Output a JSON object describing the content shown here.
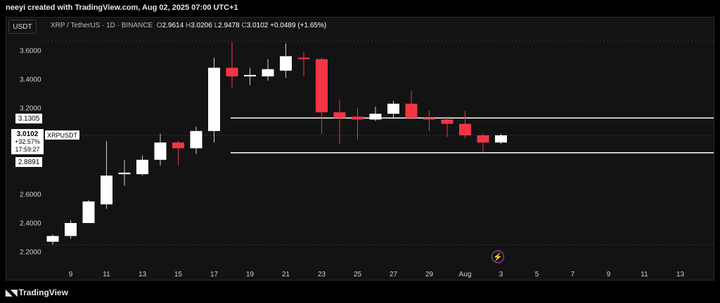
{
  "header": {
    "creator": "neeyi created with TradingView.com, Aug 02, 2025 07:00 UTC+1"
  },
  "toolbar": {
    "currency_button": "USDT"
  },
  "legend": {
    "pair": "XRP / TetherUS · 1D · BINANCE",
    "open_label": "O",
    "open": "2.9614",
    "high_label": "H",
    "high": "3.0206",
    "low_label": "L",
    "low": "2.9478",
    "close_label": "C",
    "close": "3.0102",
    "change": "+0.0489 (+1.65%)"
  },
  "price_scale": {
    "level_upper": "3.1305",
    "level_lower": "2.8891",
    "current_price": "3.0102",
    "current_change": "+32.57%",
    "countdown": "17:59:27",
    "symbol_tag": "XRPUSDT"
  },
  "chart_data": {
    "type": "candlestick",
    "y_ticks": [
      "3.6000",
      "3.4000",
      "3.2000",
      "2.6000",
      "2.4000",
      "2.2000"
    ],
    "x_ticks": [
      "9",
      "11",
      "13",
      "15",
      "17",
      "19",
      "21",
      "23",
      "25",
      "27",
      "29",
      "Aug",
      "3",
      "5",
      "7",
      "9",
      "11",
      "13"
    ],
    "ylim": [
      2.16,
      3.7
    ],
    "horizontal_levels": [
      3.1305,
      2.8891
    ],
    "colors": {
      "up": "#ffffff",
      "down": "#f23645",
      "background": "#131313",
      "grid": "#3a3a3a"
    },
    "candles": [
      {
        "date": "Jul 8",
        "o": 2.27,
        "h": 2.32,
        "l": 2.25,
        "c": 2.31
      },
      {
        "date": "Jul 9",
        "o": 2.31,
        "h": 2.42,
        "l": 2.29,
        "c": 2.4
      },
      {
        "date": "Jul 10",
        "o": 2.4,
        "h": 2.56,
        "l": 2.4,
        "c": 2.55
      },
      {
        "date": "Jul 11",
        "o": 2.53,
        "h": 2.97,
        "l": 2.5,
        "c": 2.73
      },
      {
        "date": "Jul 12",
        "o": 2.74,
        "h": 2.84,
        "l": 2.66,
        "c": 2.75
      },
      {
        "date": "Jul 13",
        "o": 2.74,
        "h": 2.87,
        "l": 2.73,
        "c": 2.84
      },
      {
        "date": "Jul 14",
        "o": 2.84,
        "h": 3.02,
        "l": 2.8,
        "c": 2.96
      },
      {
        "date": "Jul 15",
        "o": 2.96,
        "h": 2.97,
        "l": 2.8,
        "c": 2.92
      },
      {
        "date": "Jul 16",
        "o": 2.92,
        "h": 3.07,
        "l": 2.88,
        "c": 3.04
      },
      {
        "date": "Jul 17",
        "o": 3.04,
        "h": 3.55,
        "l": 2.96,
        "c": 3.48
      },
      {
        "date": "Jul 18",
        "o": 3.48,
        "h": 3.66,
        "l": 3.34,
        "c": 3.42
      },
      {
        "date": "Jul 19",
        "o": 3.42,
        "h": 3.48,
        "l": 3.36,
        "c": 3.43
      },
      {
        "date": "Jul 20",
        "o": 3.42,
        "h": 3.54,
        "l": 3.39,
        "c": 3.47
      },
      {
        "date": "Jul 21",
        "o": 3.46,
        "h": 3.65,
        "l": 3.41,
        "c": 3.56
      },
      {
        "date": "Jul 22",
        "o": 3.55,
        "h": 3.59,
        "l": 3.42,
        "c": 3.54
      },
      {
        "date": "Jul 23",
        "o": 3.54,
        "h": 3.55,
        "l": 3.02,
        "c": 3.17
      },
      {
        "date": "Jul 24",
        "o": 3.17,
        "h": 3.26,
        "l": 2.95,
        "c": 3.13
      },
      {
        "date": "Jul 25",
        "o": 3.14,
        "h": 3.2,
        "l": 2.98,
        "c": 3.12
      },
      {
        "date": "Jul 26",
        "o": 3.12,
        "h": 3.21,
        "l": 3.11,
        "c": 3.16
      },
      {
        "date": "Jul 27",
        "o": 3.16,
        "h": 3.25,
        "l": 3.13,
        "c": 3.23
      },
      {
        "date": "Jul 28",
        "o": 3.23,
        "h": 3.32,
        "l": 3.12,
        "c": 3.13
      },
      {
        "date": "Jul 29",
        "o": 3.13,
        "h": 3.18,
        "l": 3.04,
        "c": 3.12
      },
      {
        "date": "Jul 30",
        "o": 3.12,
        "h": 3.14,
        "l": 3.0,
        "c": 3.09
      },
      {
        "date": "Jul 31",
        "o": 3.09,
        "h": 3.18,
        "l": 2.99,
        "c": 3.01
      },
      {
        "date": "Aug 1",
        "o": 3.01,
        "h": 3.02,
        "l": 2.89,
        "c": 2.96
      },
      {
        "date": "Aug 2",
        "o": 2.96,
        "h": 3.02,
        "l": 2.95,
        "c": 3.01
      }
    ]
  },
  "footer": {
    "brand": "TradingView",
    "logo_icon": "tradingview-logo-icon"
  },
  "alerts": {
    "icon": "lightning-bolt-icon"
  }
}
